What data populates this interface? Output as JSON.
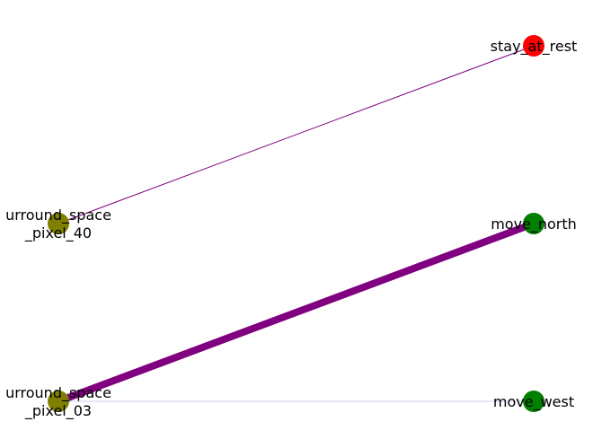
{
  "graph": {
    "nodes": [
      {
        "id": "stay_at_rest",
        "label_lines": [
          "stay_at_rest"
        ],
        "color": "#ff0000"
      },
      {
        "id": "surround_space_pixel_40",
        "label_lines": [
          "urround_space",
          "_pixel_40"
        ],
        "color": "#808000"
      },
      {
        "id": "move_north",
        "label_lines": [
          "move_north"
        ],
        "color": "#008000"
      },
      {
        "id": "surround_space_pixel_03",
        "label_lines": [
          "urround_space",
          "_pixel_03"
        ],
        "color": "#808000"
      },
      {
        "id": "move_west",
        "label_lines": [
          "move_west"
        ],
        "color": "#008000"
      }
    ],
    "edges": [
      {
        "source": "surround_space_pixel_40",
        "target": "stay_at_rest",
        "weight": 0.12,
        "color": "#800080"
      },
      {
        "source": "surround_space_pixel_03",
        "target": "move_north",
        "weight": 1.0,
        "color": "#800080"
      },
      {
        "source": "surround_space_pixel_03",
        "target": "move_west",
        "weight": 0.05,
        "color": "#ccccee"
      }
    ]
  }
}
